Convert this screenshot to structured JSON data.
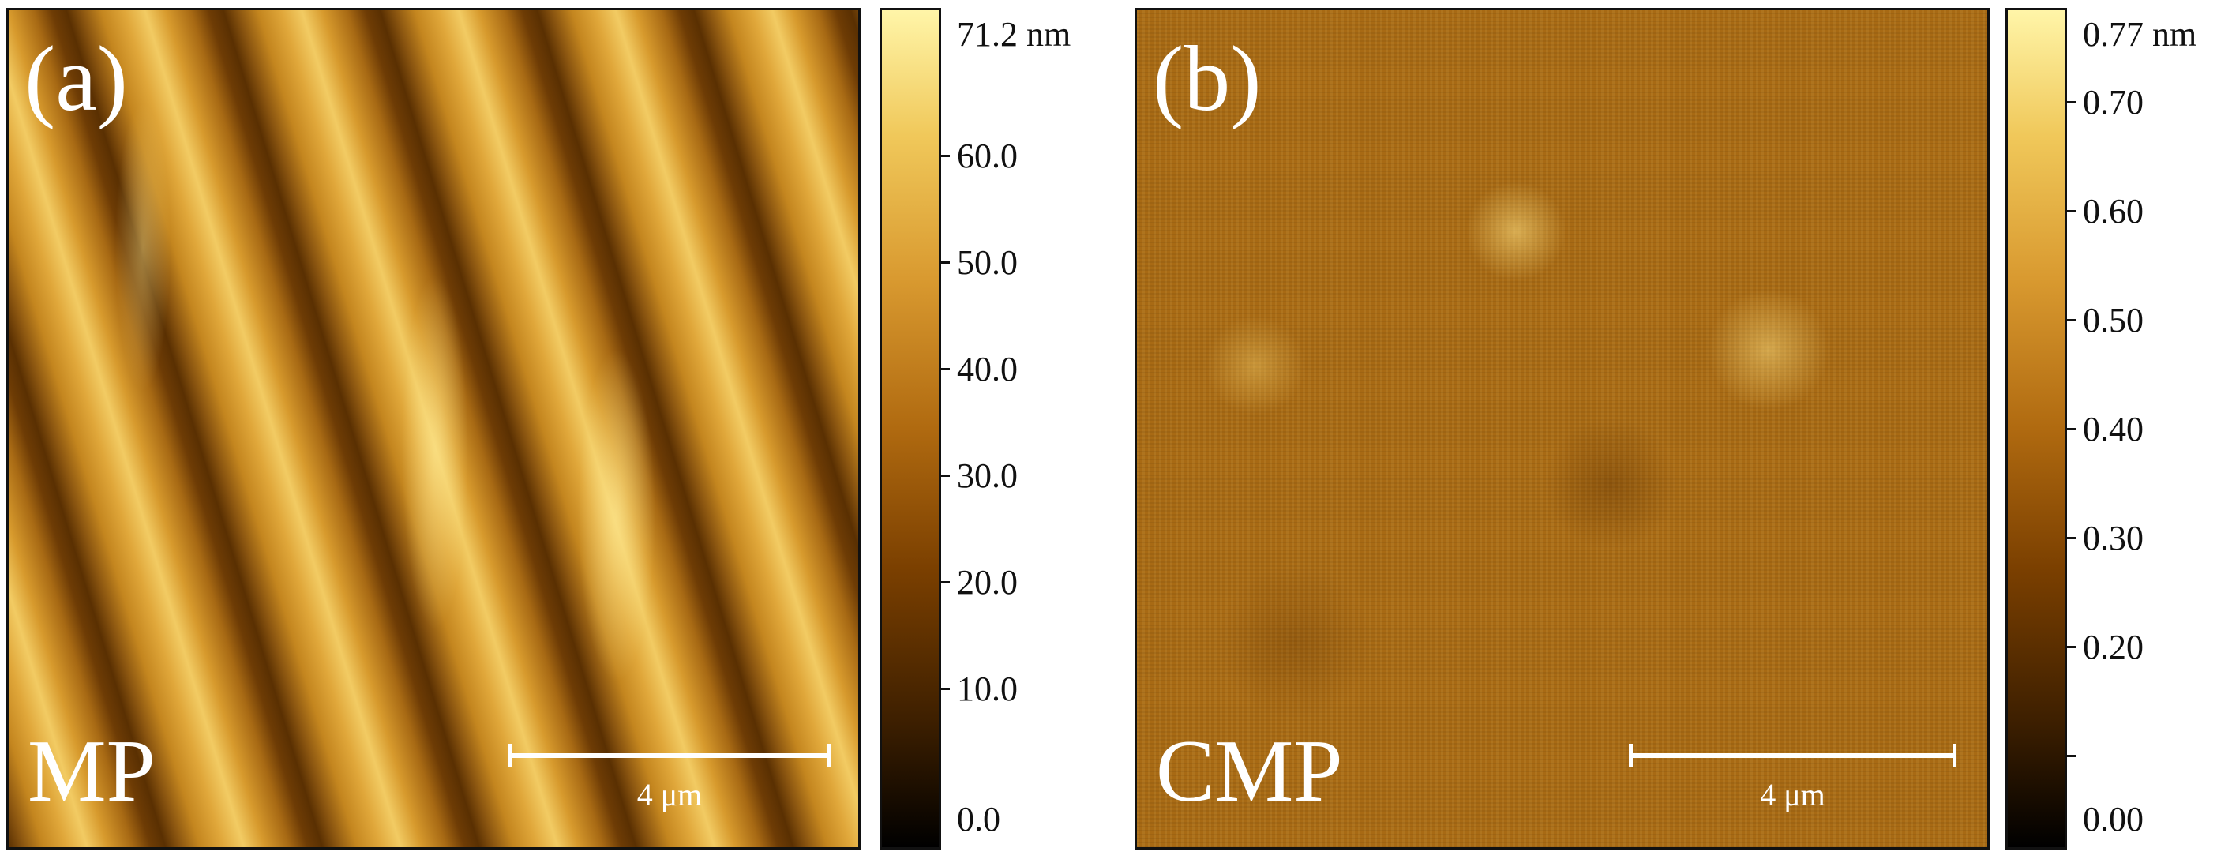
{
  "panel_a": {
    "label": "(a)",
    "sample": "MP",
    "scalebar": "4 μm",
    "colorbar_top": "71.2 nm",
    "colorbar_ticks": [
      "60.0",
      "50.0",
      "40.0",
      "30.0",
      "20.0",
      "10.0",
      "0.0"
    ]
  },
  "panel_b": {
    "label": "(b)",
    "sample": "CMP",
    "scalebar": "4 μm",
    "colorbar_top": "0.77 nm",
    "colorbar_ticks": [
      "0.70",
      "0.60",
      "0.50",
      "0.40",
      "0.30",
      "0.20",
      "0.00"
    ]
  },
  "colors": {
    "bar_low": "#000000",
    "bar_mid": "#b06a10",
    "bar_high": "#fff5a8"
  }
}
